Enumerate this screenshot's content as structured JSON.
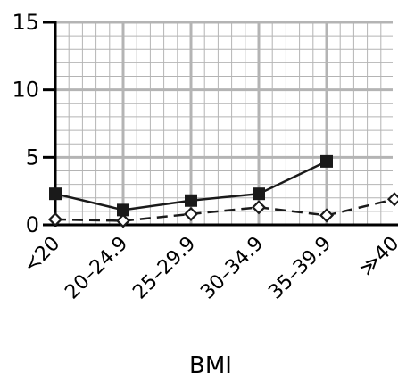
{
  "chart_data": {
    "type": "line",
    "categories": [
      "<20",
      "20–24.9",
      "25–29.9",
      "30–34.9",
      "35–39.9",
      "≥40"
    ],
    "category_labels_display": [
      "≺20",
      "20–24.9",
      "25–29.9",
      "30–34.9",
      "35–39.9",
      "≫40"
    ],
    "series": [
      {
        "marker": "filled-square",
        "line": "solid",
        "color": "#1a1a1a",
        "values": [
          2.3,
          1.1,
          1.8,
          2.3,
          4.7,
          null
        ]
      },
      {
        "marker": "open-diamond",
        "line": "dashed",
        "color": "#1a1a1a",
        "values": [
          0.4,
          0.3,
          0.8,
          1.3,
          0.7,
          1.9
        ]
      }
    ],
    "ylim": [
      0,
      15
    ],
    "yticks": [
      0,
      5,
      10,
      15
    ],
    "xlabel": "BMI",
    "ylabel": "",
    "title": "",
    "grid": true,
    "grid_color": "#b4b4b4",
    "legend": "none"
  }
}
